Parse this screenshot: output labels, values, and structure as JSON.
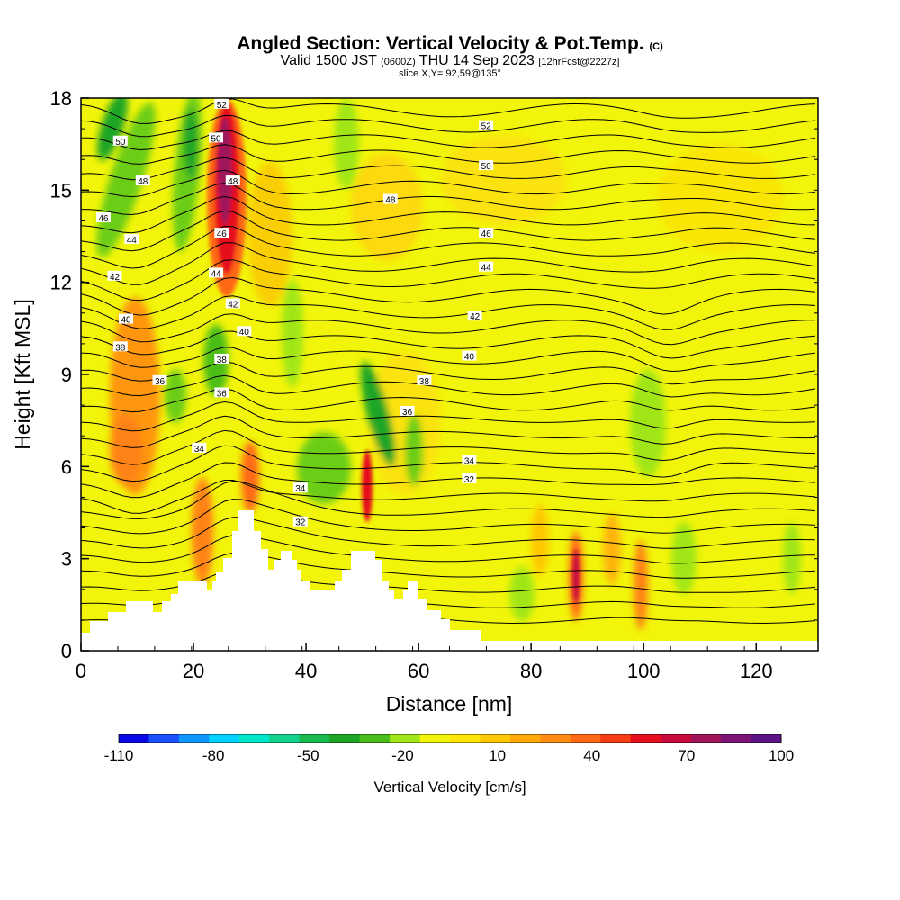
{
  "header": {
    "title_main": "Angled Section: Vertical Velocity & Pot.Temp.",
    "title_unit": "(C)",
    "valid_pre": "Valid 1500 JST",
    "valid_z": "(0600Z)",
    "valid_date": "THU 14 Sep 2023",
    "valid_fcst": "[12hrFcst@2227z]",
    "slice": "slice X,Y= 92,59@135°"
  },
  "chart_data": {
    "type": "heatmap",
    "xlabel": "Distance [nm]",
    "ylabel": "Height [Kft MSL]",
    "xlim": [
      0,
      131
    ],
    "ylim": [
      0,
      18
    ],
    "x_ticks": [
      0,
      20,
      40,
      60,
      80,
      100,
      120
    ],
    "y_ticks": [
      0,
      3,
      6,
      9,
      12,
      15,
      18
    ],
    "colorbar": {
      "label": "Vertical Velocity [cm/s]",
      "tick_labels": [
        "-110",
        "-80",
        "-50",
        "-20",
        "10",
        "40",
        "70",
        "100"
      ],
      "colors": [
        "#0a0ae6",
        "#1a50ff",
        "#0f96ff",
        "#00d2ff",
        "#00e6c8",
        "#14d28c",
        "#19b950",
        "#1ea528",
        "#4bbe19",
        "#a0e619",
        "#f0f50a",
        "#ffe605",
        "#ffc805",
        "#ffaa0a",
        "#ff8c14",
        "#ff6914",
        "#f53c14",
        "#e60f1e",
        "#c80a3c",
        "#a0145a",
        "#7d1478",
        "#5a1486"
      ]
    },
    "theta_labels": [
      {
        "x": 25,
        "y": 17.8,
        "text": "52"
      },
      {
        "x": 72,
        "y": 17.1,
        "text": "52"
      },
      {
        "x": 7,
        "y": 16.6,
        "text": "50"
      },
      {
        "x": 24,
        "y": 16.7,
        "text": "50"
      },
      {
        "x": 72,
        "y": 15.8,
        "text": "50"
      },
      {
        "x": 11,
        "y": 15.3,
        "text": "48"
      },
      {
        "x": 27,
        "y": 15.3,
        "text": "48"
      },
      {
        "x": 55,
        "y": 14.7,
        "text": "48"
      },
      {
        "x": 4,
        "y": 14.1,
        "text": "46"
      },
      {
        "x": 25,
        "y": 13.6,
        "text": "46"
      },
      {
        "x": 72,
        "y": 13.6,
        "text": "46"
      },
      {
        "x": 9,
        "y": 13.4,
        "text": "44"
      },
      {
        "x": 24,
        "y": 12.3,
        "text": "44"
      },
      {
        "x": 72,
        "y": 12.5,
        "text": "44"
      },
      {
        "x": 6,
        "y": 12.2,
        "text": "42"
      },
      {
        "x": 27,
        "y": 11.3,
        "text": "42"
      },
      {
        "x": 70,
        "y": 10.9,
        "text": "42"
      },
      {
        "x": 8,
        "y": 10.8,
        "text": "40"
      },
      {
        "x": 29,
        "y": 10.4,
        "text": "40"
      },
      {
        "x": 69,
        "y": 9.6,
        "text": "40"
      },
      {
        "x": 7,
        "y": 9.9,
        "text": "38"
      },
      {
        "x": 25,
        "y": 9.5,
        "text": "38"
      },
      {
        "x": 61,
        "y": 8.8,
        "text": "38"
      },
      {
        "x": 14,
        "y": 8.8,
        "text": "36"
      },
      {
        "x": 25,
        "y": 8.4,
        "text": "36"
      },
      {
        "x": 58,
        "y": 7.8,
        "text": "36"
      },
      {
        "x": 21,
        "y": 6.6,
        "text": "34"
      },
      {
        "x": 39,
        "y": 5.3,
        "text": "34"
      },
      {
        "x": 69,
        "y": 6.2,
        "text": "34"
      },
      {
        "x": 39,
        "y": 4.2,
        "text": "32"
      },
      {
        "x": 69,
        "y": 5.6,
        "text": "32"
      }
    ]
  }
}
